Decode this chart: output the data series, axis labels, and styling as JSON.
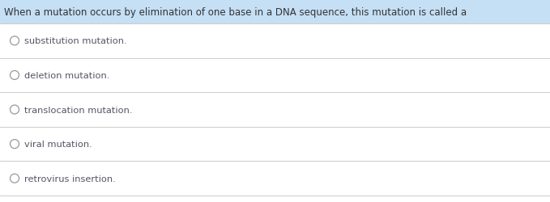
{
  "question": "When a mutation occurs by elimination of one base in a DNA sequence, this mutation is called a",
  "question_bg": "#c5dff5",
  "question_text_color": "#333333",
  "options": [
    "substitution mutation.",
    "deletion mutation.",
    "translocation mutation.",
    "viral mutation.",
    "retrovirus insertion."
  ],
  "option_text_color": "#555566",
  "bg_color": "#ffffff",
  "divider_color": "#cccccc",
  "circle_edge_color": "#999999",
  "font_size_question": 8.5,
  "font_size_options": 8.2,
  "fig_width": 6.79,
  "fig_height": 2.51,
  "dpi": 100
}
